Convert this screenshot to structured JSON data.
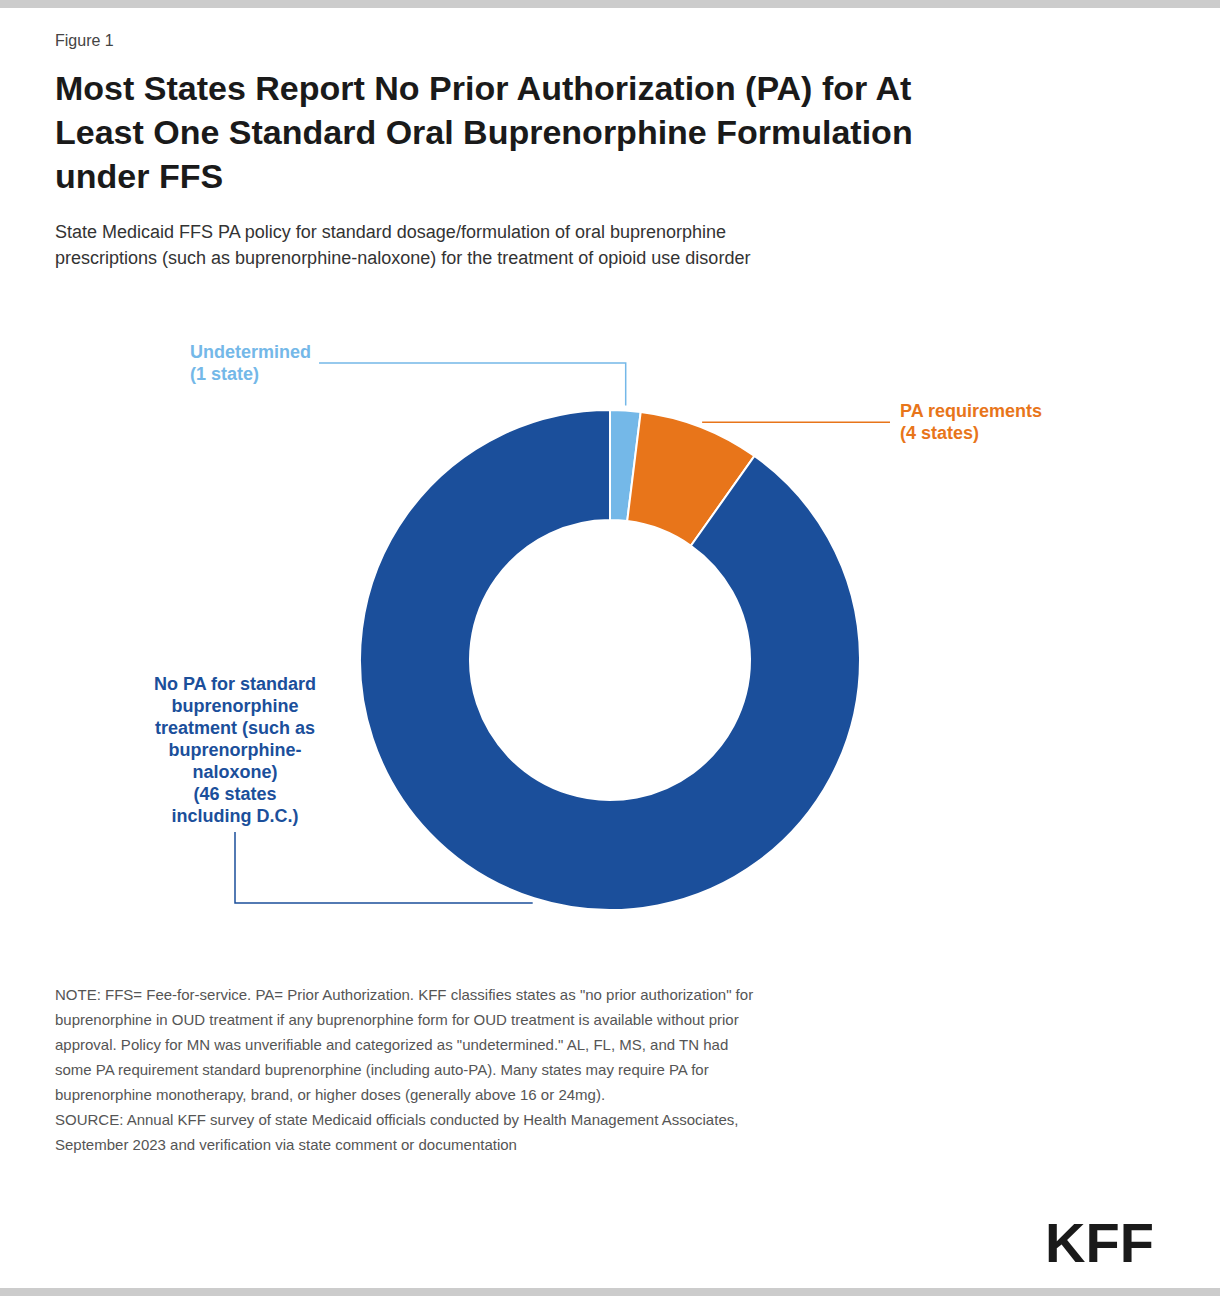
{
  "chart_data": {
    "type": "donut",
    "figure_label": "Figure 1",
    "title": "Most States Report No Prior Authorization (PA) for At\nLeast One Standard Oral Buprenorphine Formulation\nunder FFS",
    "subtitle": "State Medicaid FFS PA policy for standard dosage/formulation of oral buprenorphine\nprescriptions (such as buprenorphine-naloxone) for the treatment of opioid use disorder",
    "categories": [
      "Undetermined\n(1 state)",
      "PA requirements\n(4 states)",
      "No PA for standard\nbuprenorphine\ntreatment (such as\nbuprenorphine-\nnaloxone)\n(46 states\nincluding D.C.)"
    ],
    "values": [
      1,
      4,
      46
    ],
    "colors": [
      "#74B8E8",
      "#E8751A",
      "#1B4F9B"
    ],
    "note": "NOTE: FFS= Fee-for-service. PA= Prior Authorization. KFF classifies states as \"no prior authorization\" for\nbuprenorphine in OUD treatment if any buprenorphine form for OUD treatment is available without prior\napproval. Policy for MN was unverifiable and categorized as \"undetermined.\" AL, FL, MS, and TN had\nsome PA requirement standard buprenorphine (including auto-PA). Many states may require PA for\nbuprenorphine monotherapy, brand, or higher doses (generally above 16 or 24mg).\nSOURCE: Annual KFF survey of state Medicaid officials conducted by Health Management Associates,\nSeptember 2023 and verification via state comment or documentation",
    "logo": "KFF"
  }
}
